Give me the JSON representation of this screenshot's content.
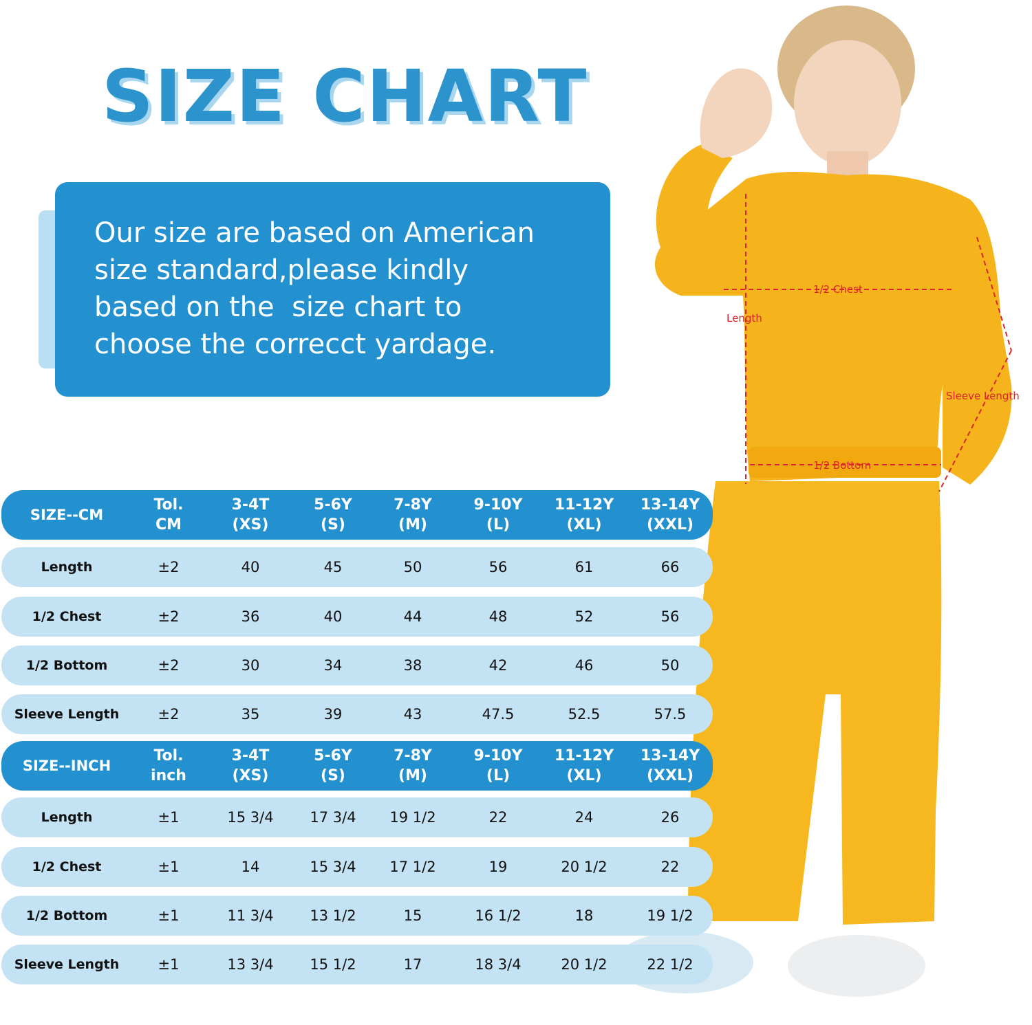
{
  "title": "SIZE CHART",
  "intro_lines": [
    "Our size are based on American",
    "size standard,please kindly",
    "based on the  size chart to",
    "choose the correcct yardage."
  ],
  "measure_labels": {
    "chest": "1/2 Chest",
    "length": "Length",
    "sleeve": "Sleeve Length",
    "bottom": "1/2 Bottom"
  },
  "cm_table": {
    "header": {
      "label": "SIZE--CM",
      "tol": [
        "Tol.",
        "CM"
      ],
      "sizes": [
        [
          "3-4T",
          "(XS)"
        ],
        [
          "5-6Y",
          "(S)"
        ],
        [
          "7-8Y",
          "(M)"
        ],
        [
          "9-10Y",
          "(L)"
        ],
        [
          "11-12Y",
          "(XL)"
        ],
        [
          "13-14Y",
          "(XXL)"
        ]
      ]
    },
    "rows": [
      {
        "label": "Length",
        "tol": "±2",
        "values": [
          "40",
          "45",
          "50",
          "56",
          "61",
          "66"
        ]
      },
      {
        "label": "1/2 Chest",
        "tol": "±2",
        "values": [
          "36",
          "40",
          "44",
          "48",
          "52",
          "56"
        ]
      },
      {
        "label": "1/2 Bottom",
        "tol": "±2",
        "values": [
          "30",
          "34",
          "38",
          "42",
          "46",
          "50"
        ]
      },
      {
        "label": "Sleeve Length",
        "tol": "±2",
        "values": [
          "35",
          "39",
          "43",
          "47.5",
          "52.5",
          "57.5"
        ]
      }
    ]
  },
  "inch_table": {
    "header": {
      "label": "SIZE--INCH",
      "tol": [
        "Tol.",
        "inch"
      ],
      "sizes": [
        [
          "3-4T",
          "(XS)"
        ],
        [
          "5-6Y",
          "(S)"
        ],
        [
          "7-8Y",
          "(M)"
        ],
        [
          "9-10Y",
          "(L)"
        ],
        [
          "11-12Y",
          "(XL)"
        ],
        [
          "13-14Y",
          "(XXL)"
        ]
      ]
    },
    "rows": [
      {
        "label": "Length",
        "tol": "±1",
        "values": [
          "15 3/4",
          "17 3/4",
          "19 1/2",
          "22",
          "24",
          "26"
        ]
      },
      {
        "label": "1/2 Chest",
        "tol": "±1",
        "values": [
          "14",
          "15 3/4",
          "17 1/2",
          "19",
          "20 1/2",
          "22"
        ]
      },
      {
        "label": "1/2 Bottom",
        "tol": "±1",
        "values": [
          "11 3/4",
          "13 1/2",
          "15",
          "16 1/2",
          "18",
          "19 1/2"
        ]
      },
      {
        "label": "Sleeve Length",
        "tol": "±1",
        "values": [
          "13 3/4",
          "15 1/2",
          "17",
          "18 3/4",
          "20 1/2",
          "22 1/2"
        ]
      }
    ]
  },
  "colors": {
    "accent": "#2391cf",
    "row_fill": "#c3e2f4",
    "sweater": "#f5b31c",
    "measure_line": "#d8262c"
  }
}
